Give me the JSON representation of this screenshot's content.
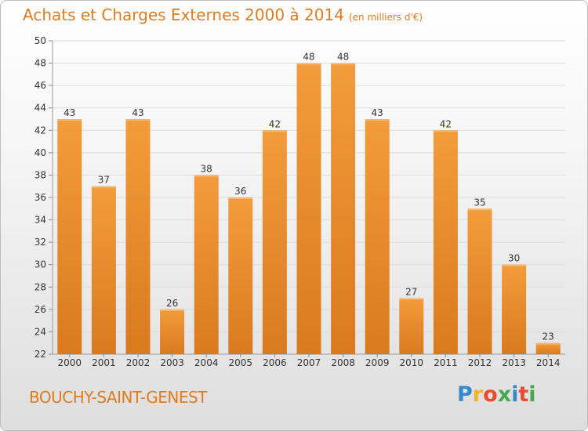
{
  "chart_data": {
    "type": "bar",
    "title": "Achats et Charges Externes 2000 à 2014",
    "unit_label": "(en milliers d'€)",
    "categories": [
      "2000",
      "2001",
      "2002",
      "2003",
      "2004",
      "2005",
      "2006",
      "2007",
      "2008",
      "2009",
      "2010",
      "2011",
      "2012",
      "2013",
      "2014"
    ],
    "values": [
      43,
      37,
      43,
      26,
      38,
      36,
      42,
      48,
      48,
      43,
      27,
      42,
      35,
      30,
      23
    ],
    "ylim": [
      22,
      50
    ],
    "yticks": [
      22,
      24,
      26,
      28,
      30,
      32,
      34,
      36,
      38,
      40,
      42,
      44,
      46,
      48,
      50
    ],
    "grid": true,
    "legend": "none",
    "bar_color": "#f39c3c",
    "bar_color_dark": "#d97a1e"
  },
  "place_name": "BOUCHY-SAINT-GENEST",
  "logo": {
    "letters": [
      "P",
      "r",
      "o",
      "x",
      "i",
      "t",
      "i"
    ],
    "colors": [
      "#3a88c9",
      "#f0b323",
      "#e64c2e",
      "#4aa64f",
      "#3a88c9",
      "#e64c2e",
      "#4aa64f"
    ]
  }
}
